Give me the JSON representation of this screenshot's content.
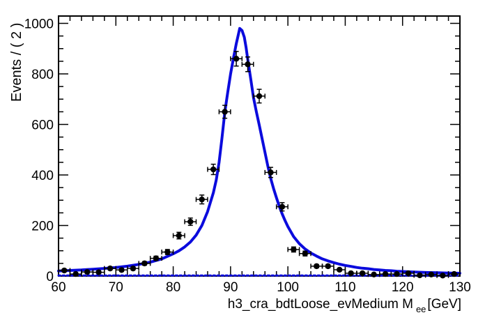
{
  "figure": {
    "background_color": "#ffffff",
    "frame_color": "#000000",
    "curve_color": "#0b0bdd",
    "marker_color": "#000000"
  },
  "chart_data": {
    "type": "line",
    "title": "",
    "ylabel": "Events / ( 2 )",
    "xlabel_prefix": "h3_cra_bdtLoose_evMedium  M",
    "xlabel_subscript": "ee",
    "xlabel_suffix": "[GeV]",
    "xlim": [
      60,
      130
    ],
    "ylim": [
      0,
      1029
    ],
    "grid": false,
    "legend": false,
    "x_major_ticks": [
      60,
      70,
      80,
      90,
      100,
      110,
      120,
      130
    ],
    "x_minor_step": 2,
    "y_major_ticks": [
      0,
      200,
      400,
      600,
      800,
      1000
    ],
    "y_minor_step": 50,
    "bin_width_gev": 2,
    "series": [
      {
        "name": "data_points",
        "type": "errorbar",
        "color": "#000000",
        "xerr": 1,
        "x": [
          61,
          63,
          65,
          67,
          69,
          71,
          73,
          75,
          77,
          79,
          81,
          83,
          85,
          87,
          89,
          91,
          93,
          95,
          97,
          99,
          101,
          103,
          105,
          107,
          109,
          111,
          113,
          115,
          117,
          119,
          121,
          123,
          125,
          127,
          129
        ],
        "y": [
          22,
          8,
          16,
          15,
          30,
          24,
          30,
          50,
          70,
          95,
          160,
          215,
          303,
          422,
          650,
          860,
          838,
          712,
          410,
          274,
          105,
          89,
          39,
          39,
          25,
          11,
          11,
          6,
          8,
          8,
          11,
          3,
          6,
          2,
          8
        ],
        "yerr": [
          5,
          3,
          4,
          4,
          5.5,
          5,
          5.5,
          7,
          8.5,
          10,
          13,
          14.5,
          17.5,
          20.5,
          25.5,
          29,
          29,
          27,
          20,
          16.5,
          10,
          9.5,
          6.5,
          6.5,
          5,
          3.5,
          3.5,
          2.5,
          3,
          3,
          3.5,
          2,
          2.5,
          1.5,
          3
        ]
      },
      {
        "name": "total_fit_curve",
        "type": "line",
        "style": "solid",
        "color": "#0b0bdd",
        "width": 4,
        "points": [
          [
            60,
            20
          ],
          [
            62,
            22
          ],
          [
            64,
            24
          ],
          [
            66,
            27
          ],
          [
            68,
            30
          ],
          [
            70,
            34
          ],
          [
            72,
            39
          ],
          [
            74,
            46
          ],
          [
            76,
            55
          ],
          [
            78,
            68
          ],
          [
            80,
            88
          ],
          [
            81,
            100
          ],
          [
            82,
            115
          ],
          [
            83,
            135
          ],
          [
            84,
            162
          ],
          [
            85,
            200
          ],
          [
            86,
            255
          ],
          [
            87,
            330
          ],
          [
            87.5,
            380
          ],
          [
            88,
            450
          ],
          [
            88.5,
            545
          ],
          [
            89,
            648
          ],
          [
            89.5,
            725
          ],
          [
            90,
            800
          ],
          [
            90.5,
            862
          ],
          [
            91,
            920
          ],
          [
            91.3,
            950
          ],
          [
            91.6,
            980
          ],
          [
            92,
            972
          ],
          [
            92.4,
            945
          ],
          [
            92.7,
            905
          ],
          [
            93,
            858
          ],
          [
            93.5,
            782
          ],
          [
            94,
            706
          ],
          [
            94.5,
            650
          ],
          [
            95,
            598
          ],
          [
            95.5,
            544
          ],
          [
            96,
            490
          ],
          [
            96.5,
            436
          ],
          [
            97,
            386
          ],
          [
            97.5,
            346
          ],
          [
            98,
            310
          ],
          [
            98.5,
            276
          ],
          [
            99,
            246
          ],
          [
            99.5,
            220
          ],
          [
            100,
            196
          ],
          [
            101,
            156
          ],
          [
            102,
            128
          ],
          [
            103,
            107
          ],
          [
            104,
            91
          ],
          [
            105,
            79
          ],
          [
            106,
            68
          ],
          [
            107,
            60
          ],
          [
            108,
            53
          ],
          [
            109,
            47
          ],
          [
            110,
            42
          ],
          [
            111,
            38
          ],
          [
            112,
            34
          ],
          [
            113,
            31
          ],
          [
            114,
            29
          ],
          [
            115,
            26
          ],
          [
            116,
            24
          ],
          [
            117,
            22
          ],
          [
            118,
            21
          ],
          [
            119,
            19
          ],
          [
            120,
            18
          ],
          [
            122,
            16
          ],
          [
            124,
            14
          ],
          [
            126,
            13
          ],
          [
            128,
            12
          ],
          [
            130,
            11
          ]
        ]
      },
      {
        "name": "background_fit_curve",
        "type": "line",
        "style": "dotted",
        "color": "#0b0bdd",
        "width": 3,
        "points": [
          [
            60,
            2
          ],
          [
            130,
            2
          ]
        ]
      }
    ]
  }
}
